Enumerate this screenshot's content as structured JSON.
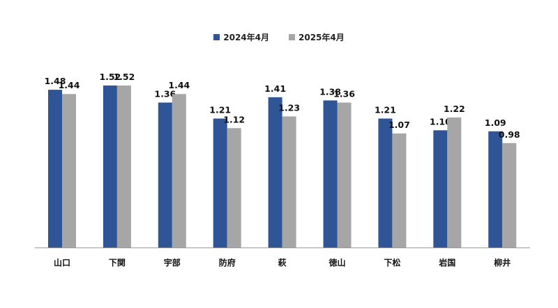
{
  "colors": {
    "series1": "#2f5597",
    "series2": "#a6a6a6",
    "axis": "#9a9a9a"
  },
  "chart_data": {
    "type": "bar",
    "title": "",
    "xlabel": "",
    "ylabel": "",
    "ylim": [
      0,
      1.7
    ],
    "grid": false,
    "legend_position": "top-center",
    "categories": [
      "山口",
      "下関",
      "宇部",
      "防府",
      "萩",
      "徳山",
      "下松",
      "岩国",
      "柳井"
    ],
    "series": [
      {
        "name": "2024年4月",
        "values": [
          1.48,
          1.52,
          1.36,
          1.21,
          1.41,
          1.38,
          1.21,
          1.1,
          1.09
        ],
        "labels": [
          "1.48",
          "1.52",
          "1.36",
          "1.21",
          "1.41",
          "1.38",
          "1.21",
          "1.10",
          "1.09"
        ]
      },
      {
        "name": "2025年4月",
        "values": [
          1.44,
          1.52,
          1.44,
          1.12,
          1.23,
          1.36,
          1.07,
          1.22,
          0.98
        ],
        "labels": [
          "1.44",
          "1.52",
          "1.44",
          "1.12",
          "1.23",
          "1.36",
          "1.07",
          "1.22",
          "0.98"
        ]
      }
    ]
  }
}
